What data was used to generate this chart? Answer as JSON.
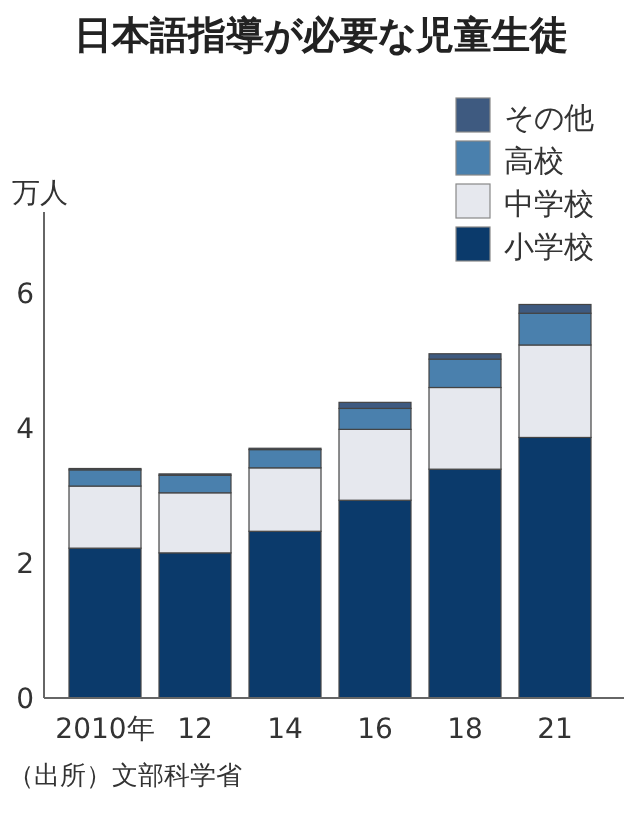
{
  "chart_data": {
    "type": "bar",
    "title": "日本語指導が必要な児童生徒",
    "ylabel": "万人",
    "categories": [
      "2010年",
      "12",
      "14",
      "16",
      "18",
      "21"
    ],
    "stacked": true,
    "series": [
      {
        "name": "小学校",
        "color": "#0b3a6b",
        "values": [
          2.22,
          2.15,
          2.47,
          2.93,
          3.39,
          3.86
        ]
      },
      {
        "name": "中学校",
        "color": "#e6e8ee",
        "values": [
          0.92,
          0.89,
          0.94,
          1.05,
          1.21,
          1.37
        ]
      },
      {
        "name": "高校",
        "color": "#4a80ad",
        "values": [
          0.24,
          0.26,
          0.27,
          0.31,
          0.42,
          0.47
        ]
      },
      {
        "name": "その他",
        "color": "#3e5a80",
        "values": [
          0.02,
          0.02,
          0.02,
          0.09,
          0.08,
          0.13
        ]
      }
    ],
    "ylim": [
      0,
      7.2
    ],
    "yticks": [
      0,
      2,
      4,
      6
    ],
    "grid": false,
    "legend": "top right",
    "annotations": [
      "（出所）文部科学省"
    ]
  }
}
